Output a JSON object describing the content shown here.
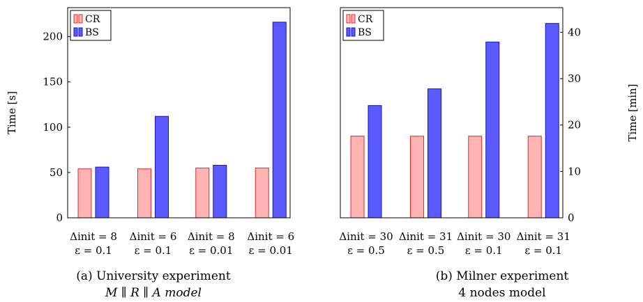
{
  "captions": [
    {
      "line1": "(a) University experiment",
      "line2": "M ∥ R ∥ A model"
    },
    {
      "line1": "(b) Milner experiment",
      "line2": "4 nodes model"
    }
  ],
  "colors": {
    "CR_fill": "#ffb3b3",
    "CR_stroke": "#e8282c",
    "BS_fill": "#5a5aff",
    "BS_stroke": "#1414c8"
  },
  "chart_data": [
    {
      "type": "bar",
      "categories": [
        [
          "Δinit = 8",
          "ε = 0.1"
        ],
        [
          "Δinit = 6",
          "ε = 0.1"
        ],
        [
          "Δinit = 8",
          "ε = 0.01"
        ],
        [
          "Δinit = 6",
          "ε = 0.01"
        ]
      ],
      "series": [
        {
          "name": "CR",
          "values": [
            54,
            54,
            55,
            55
          ]
        },
        {
          "name": "BS",
          "values": [
            56,
            112,
            58,
            216
          ]
        }
      ],
      "ylabel": "Time [s]",
      "ylim": [
        0,
        232
      ],
      "yticks": [
        0,
        50,
        100,
        150,
        200
      ],
      "y_axis_side": "left",
      "legend": "top-left",
      "grid": false
    },
    {
      "type": "bar",
      "categories": [
        [
          "Δinit = 30",
          "ε = 0.5"
        ],
        [
          "Δinit = 31",
          "ε = 0.5"
        ],
        [
          "Δinit = 30",
          "ε = 0.1"
        ],
        [
          "Δinit = 31",
          "ε = 0.1"
        ]
      ],
      "series": [
        {
          "name": "CR",
          "values": [
            17.6,
            17.6,
            17.6,
            17.6
          ]
        },
        {
          "name": "BS",
          "values": [
            24.2,
            27.8,
            37.9,
            41.9
          ]
        }
      ],
      "ylabel": "Time [min]",
      "ylim": [
        0,
        45.3
      ],
      "yticks": [
        0,
        10,
        20,
        30,
        40
      ],
      "y_axis_side": "right",
      "legend": "top-left",
      "grid": false
    }
  ]
}
